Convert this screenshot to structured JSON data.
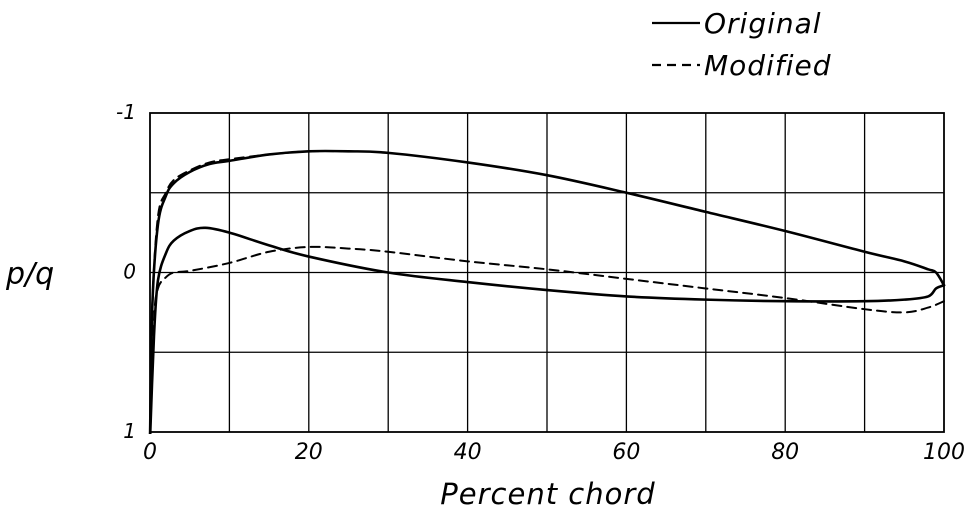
{
  "chart_data": {
    "type": "line",
    "xlabel": "Percent chord",
    "ylabel": "p/q",
    "xlim": [
      0,
      100
    ],
    "ylim": [
      -1,
      1
    ],
    "y_inverted": true,
    "grid": true,
    "legend_position": "top-right",
    "x_ticks": [
      {
        "value": 0,
        "label": "0"
      },
      {
        "value": 20,
        "label": "20"
      },
      {
        "value": 40,
        "label": "40"
      },
      {
        "value": 60,
        "label": "60"
      },
      {
        "value": 80,
        "label": "80"
      },
      {
        "value": 100,
        "label": "100"
      }
    ],
    "y_ticks": [
      {
        "value": -1,
        "label": "-1"
      },
      {
        "value": 0,
        "label": "0"
      },
      {
        "value": 1,
        "label": "1"
      }
    ],
    "x_grid_step": 10,
    "y_grid_step": 0.5,
    "series": [
      {
        "name": "Original",
        "style": "solid",
        "curves": [
          {
            "part": "upper",
            "x": [
              0,
              0.3,
              1,
              2,
              3,
              5,
              7.5,
              10,
              15,
              20,
              25,
              30,
              40,
              50,
              60,
              70,
              80,
              90,
              95,
              98,
              99,
              100
            ],
            "y": [
              1.05,
              0.2,
              -0.3,
              -0.48,
              -0.56,
              -0.63,
              -0.68,
              -0.7,
              -0.74,
              -0.76,
              -0.76,
              -0.75,
              -0.69,
              -0.61,
              -0.5,
              -0.38,
              -0.26,
              -0.13,
              -0.07,
              -0.02,
              0.0,
              0.08
            ]
          },
          {
            "part": "lower",
            "x": [
              0,
              0.5,
              1,
              2,
              3,
              5,
              7,
              10,
              15,
              20,
              30,
              40,
              50,
              60,
              70,
              80,
              90,
              95,
              98,
              99,
              100
            ],
            "y": [
              1.05,
              0.4,
              0.05,
              -0.12,
              -0.2,
              -0.26,
              -0.28,
              -0.25,
              -0.17,
              -0.1,
              0.0,
              0.06,
              0.11,
              0.15,
              0.17,
              0.18,
              0.18,
              0.17,
              0.15,
              0.1,
              0.08
            ]
          }
        ]
      },
      {
        "name": "Modified",
        "style": "dashed",
        "curves": [
          {
            "part": "upper",
            "x": [
              0,
              0.3,
              1,
              2,
              3,
              5,
              7.5,
              10,
              15,
              20,
              25
            ],
            "y": [
              1.05,
              0.2,
              -0.35,
              -0.5,
              -0.58,
              -0.64,
              -0.69,
              -0.71,
              -0.74,
              -0.76,
              -0.76
            ]
          },
          {
            "part": "lower",
            "x": [
              0,
              0.5,
              1,
              2,
              3,
              5,
              10,
              15,
              20,
              25,
              30,
              40,
              50,
              60,
              70,
              80,
              90,
              95,
              98,
              100
            ],
            "y": [
              1.05,
              0.3,
              0.1,
              0.03,
              0.0,
              -0.01,
              -0.06,
              -0.13,
              -0.16,
              -0.15,
              -0.13,
              -0.07,
              -0.02,
              0.04,
              0.1,
              0.16,
              0.23,
              0.25,
              0.22,
              0.18
            ]
          }
        ]
      }
    ]
  }
}
